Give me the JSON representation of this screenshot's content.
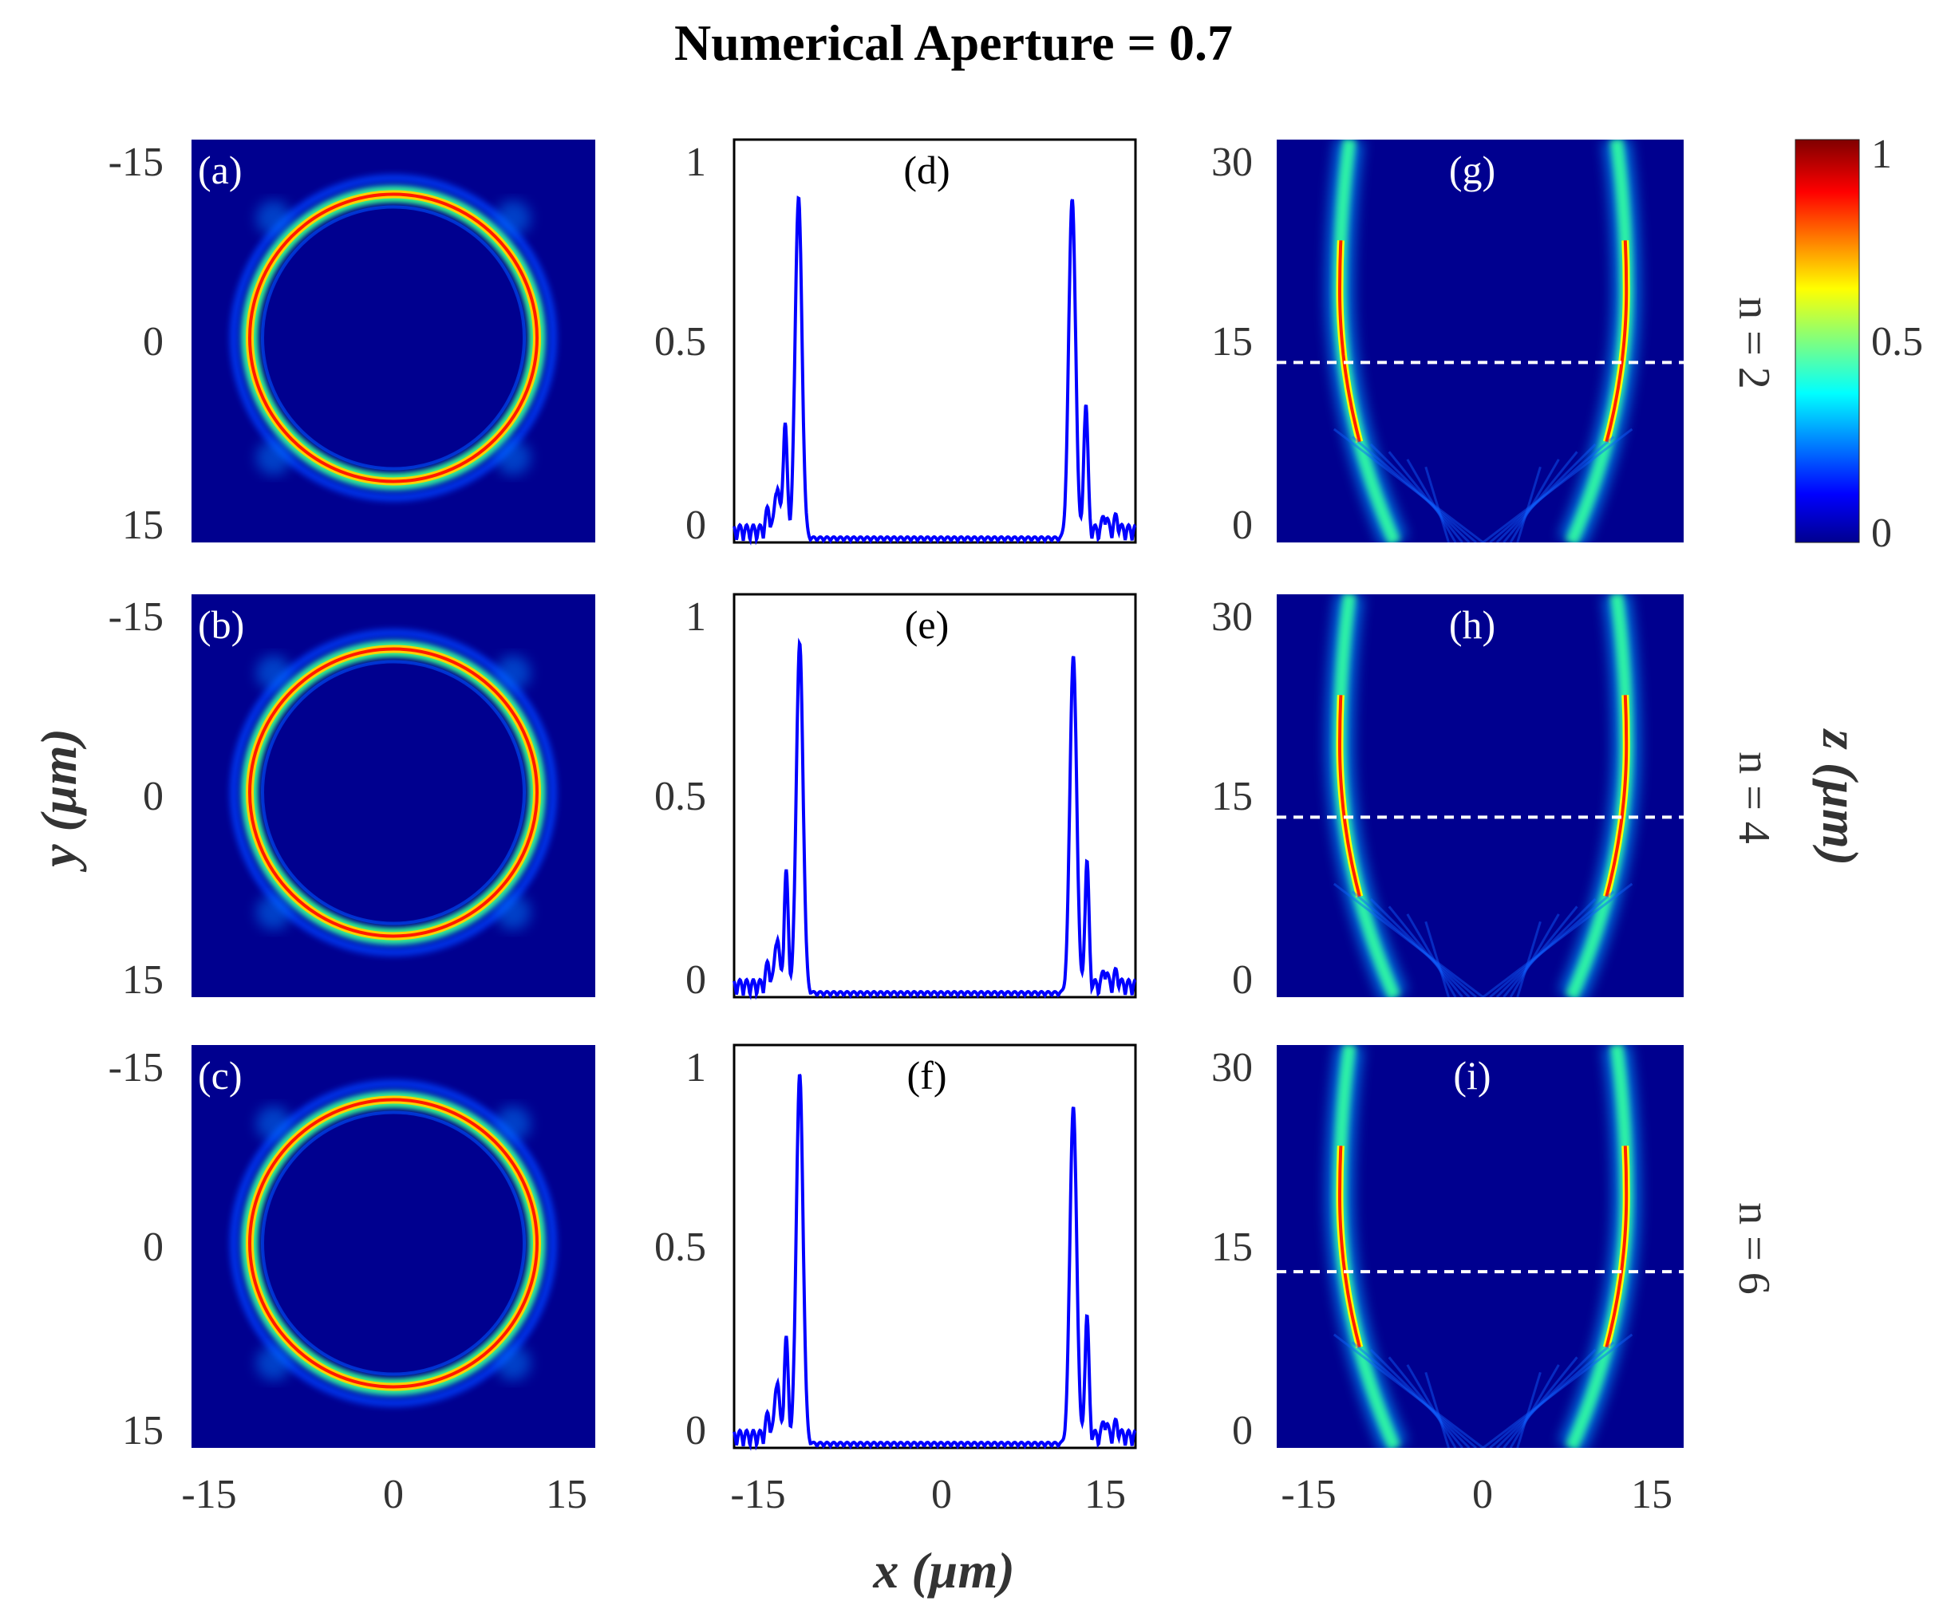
{
  "figure": {
    "title": "Numerical Aperture = 0.7",
    "y_axis_label": "y (µm)",
    "x_axis_label": "x (µm)",
    "z_axis_label": "z (µm)",
    "colorbar": {
      "ticks": [
        "1",
        "0.5",
        "0"
      ],
      "colormap": "jet"
    },
    "row_labels": [
      "n = 2",
      "n = 4",
      "n = 6"
    ],
    "panel_labels": {
      "ring": [
        "(a)",
        "(b)",
        "(c)"
      ],
      "profile": [
        "(d)",
        "(e)",
        "(f)"
      ],
      "propagation": [
        "(g)",
        "(h)",
        "(i)"
      ]
    },
    "ring_y_ticks": [
      "-15",
      "0",
      "15"
    ],
    "ring_x_ticks": [
      "-15",
      "0",
      "15"
    ],
    "profile_y_ticks": [
      "1",
      "0.5",
      "0"
    ],
    "profile_x_ticks": [
      "-15",
      "0",
      "15"
    ],
    "prop_y_ticks": [
      "30",
      "15",
      "0"
    ],
    "prop_x_ticks": [
      "-15",
      "0",
      "15"
    ]
  },
  "chart_data": [
    {
      "type": "heatmap",
      "panel": "(a)",
      "description_values": {
        "ring_radius_um": 12.5,
        "peak_intensity": 1
      },
      "xlim": [
        -18,
        18
      ],
      "ylim": [
        15,
        -15
      ]
    },
    {
      "type": "line",
      "panel": "(d)",
      "series": [
        {
          "peaks_x": [
            -14.2,
            -13.5,
            -12.3,
            11.9,
            13.1
          ],
          "peaks_y": [
            0.12,
            0.27,
            0.86,
            0.86,
            0.33
          ]
        }
      ],
      "xlim": [
        -18,
        17.5
      ],
      "ylim": [
        0,
        1
      ]
    },
    {
      "type": "line",
      "panel": "(e)",
      "series": [
        {
          "peaks_x": [
            -14.2,
            -13.4,
            -12.2,
            12.0,
            13.2
          ],
          "peaks_y": [
            0.13,
            0.28,
            0.88,
            0.85,
            0.31
          ]
        }
      ],
      "xlim": [
        -18,
        17.5
      ],
      "ylim": [
        0,
        1
      ]
    },
    {
      "type": "line",
      "panel": "(f)",
      "series": [
        {
          "peaks_x": [
            -14.2,
            -13.4,
            -12.2,
            12.0,
            13.2
          ],
          "peaks_y": [
            0.15,
            0.24,
            0.93,
            0.85,
            0.3
          ]
        }
      ],
      "xlim": [
        -18,
        17.5
      ],
      "ylim": [
        0,
        1
      ]
    },
    {
      "type": "heatmap",
      "panel": "(g)",
      "description_values": {
        "dashed_line_z_um": 14.3
      },
      "xlim": [
        -18,
        17.5
      ],
      "ylim": [
        0,
        32
      ]
    },
    {
      "type": "heatmap",
      "panel": "(h)",
      "description_values": {
        "dashed_line_z_um": 14.3
      },
      "xlim": [
        -18,
        17.5
      ],
      "ylim": [
        0,
        32
      ]
    },
    {
      "type": "heatmap",
      "panel": "(i)",
      "description_values": {
        "dashed_line_z_um": 14.0
      },
      "xlim": [
        -18,
        17.5
      ],
      "ylim": [
        0,
        32
      ]
    }
  ]
}
